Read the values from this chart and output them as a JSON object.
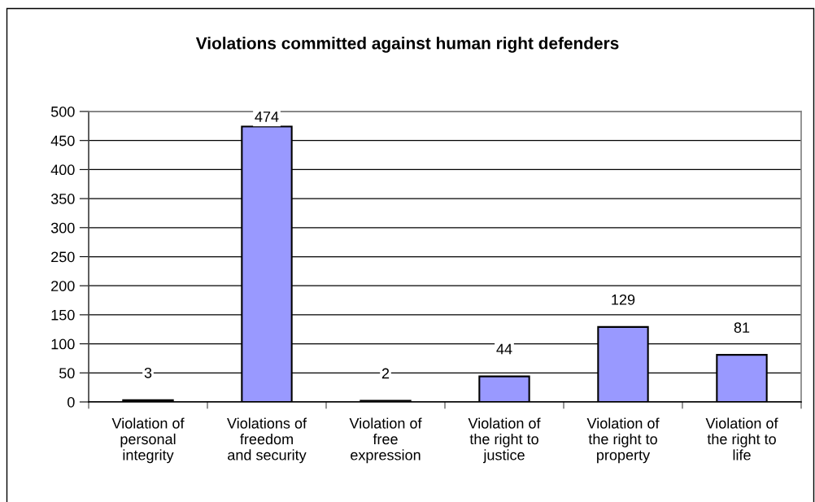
{
  "chart_data": {
    "type": "bar",
    "title": "Violations committed against human right defenders",
    "categories": [
      "Violation of\npersonal\nintegrity",
      "Violations of\nfreedom\nand security",
      "Violation of\nfree\nexpression",
      "Violation of\nthe right to\njustice",
      "Violation of\nthe right to\nproperty",
      "Violation of\nthe right to\nlife"
    ],
    "values": [
      3,
      474,
      2,
      44,
      129,
      81
    ],
    "color": "#9999ff",
    "ylim": [
      0,
      500
    ],
    "yticks": [
      0,
      50,
      100,
      150,
      200,
      250,
      300,
      350,
      400,
      450,
      500
    ],
    "grid": "y",
    "data_labels": true
  }
}
